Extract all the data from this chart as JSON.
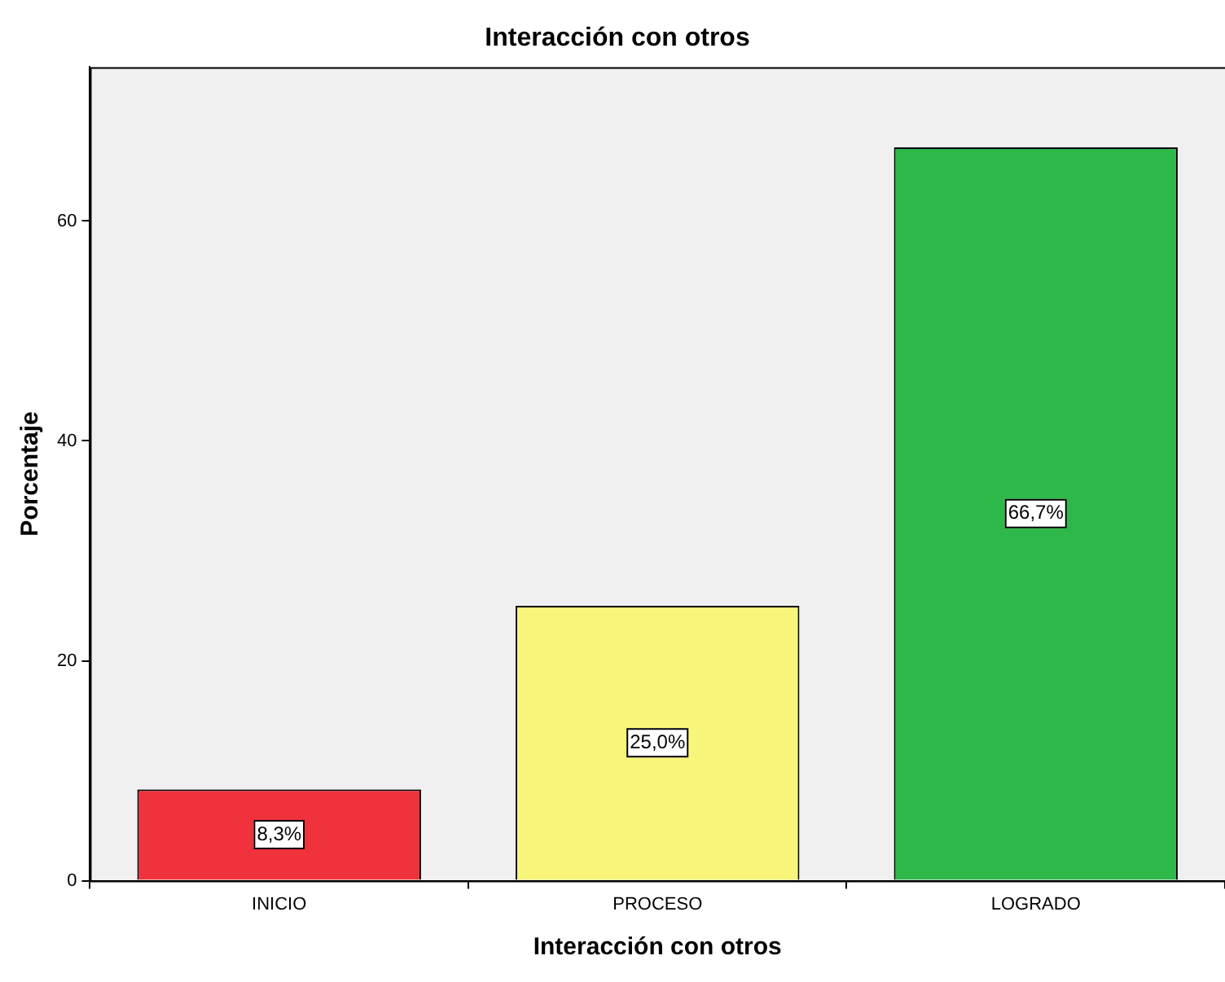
{
  "chart_data": {
    "type": "bar",
    "title": "Interacción con otros",
    "xlabel": "Interacción con otros",
    "ylabel": "Porcentaje",
    "categories": [
      "INICIO",
      "PROCESO",
      "LOGRADO"
    ],
    "values": [
      8.3,
      25.0,
      66.7
    ],
    "value_labels": [
      "8,3%",
      "25,0%",
      "66,7%"
    ],
    "colors": [
      "#ef323c",
      "#f8f57a",
      "#2fb84a"
    ],
    "ylim": [
      0,
      74
    ],
    "yticks": [
      0,
      20,
      40,
      60
    ],
    "grid": false,
    "legend": false
  }
}
